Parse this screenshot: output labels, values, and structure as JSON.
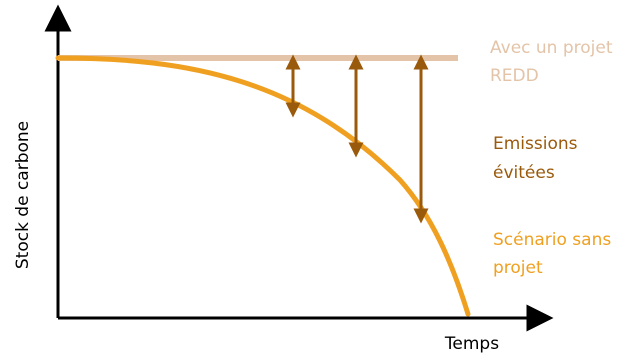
{
  "axes": {
    "y_label": "Stock de carbone",
    "x_label": "Temps"
  },
  "legend": {
    "with_project_lines": [
      "Avec un projet",
      "REDD"
    ],
    "avoided_lines": [
      "Emissions",
      "évitées"
    ],
    "without_project_lines": [
      "Scénario sans",
      "projet"
    ]
  },
  "colors": {
    "axis": "#000000",
    "with_project": "#e3c4a8",
    "avoided": "#9a5a0c",
    "without_project": "#f0a020",
    "arrow": "#9a5a0c"
  }
}
